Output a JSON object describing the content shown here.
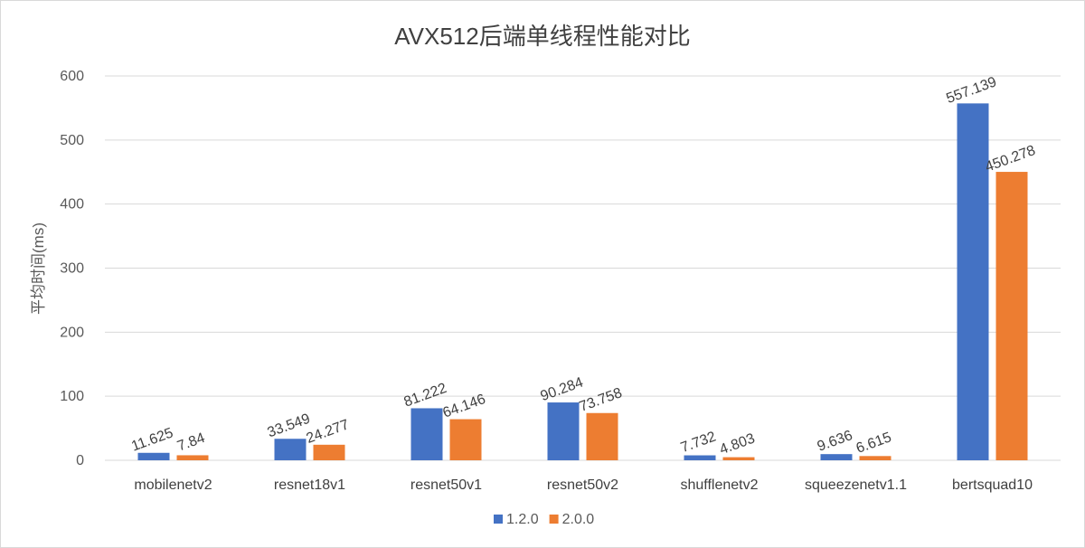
{
  "chart_data": {
    "type": "bar",
    "title": "AVX512后端单线程性能对比",
    "xlabel": "",
    "ylabel": "平均时间(ms)",
    "ylim": [
      0,
      600
    ],
    "yticks": [
      0,
      100,
      200,
      300,
      400,
      500,
      600
    ],
    "grid": true,
    "legend_position": "bottom",
    "categories": [
      "mobilenetv2",
      "resnet18v1",
      "resnet50v1",
      "resnet50v2",
      "shufflenetv2",
      "squeezenetv1.1",
      "bertsquad10"
    ],
    "series": [
      {
        "name": "1.2.0",
        "color": "#4472C4",
        "values": [
          11.625,
          33.549,
          81.222,
          90.284,
          7.732,
          9.636,
          557.139
        ],
        "labels": [
          "11.625",
          "33.549",
          "81.222",
          "90.284",
          "7.732",
          "9.636",
          "557.139"
        ]
      },
      {
        "name": "2.0.0",
        "color": "#ED7D31",
        "values": [
          7.84,
          24.277,
          64.146,
          73.758,
          4.803,
          6.615,
          450.278
        ],
        "labels": [
          "7.84",
          "24.277",
          "64.146",
          "73.758",
          "4.803",
          "6.615",
          "450.278"
        ]
      }
    ]
  }
}
